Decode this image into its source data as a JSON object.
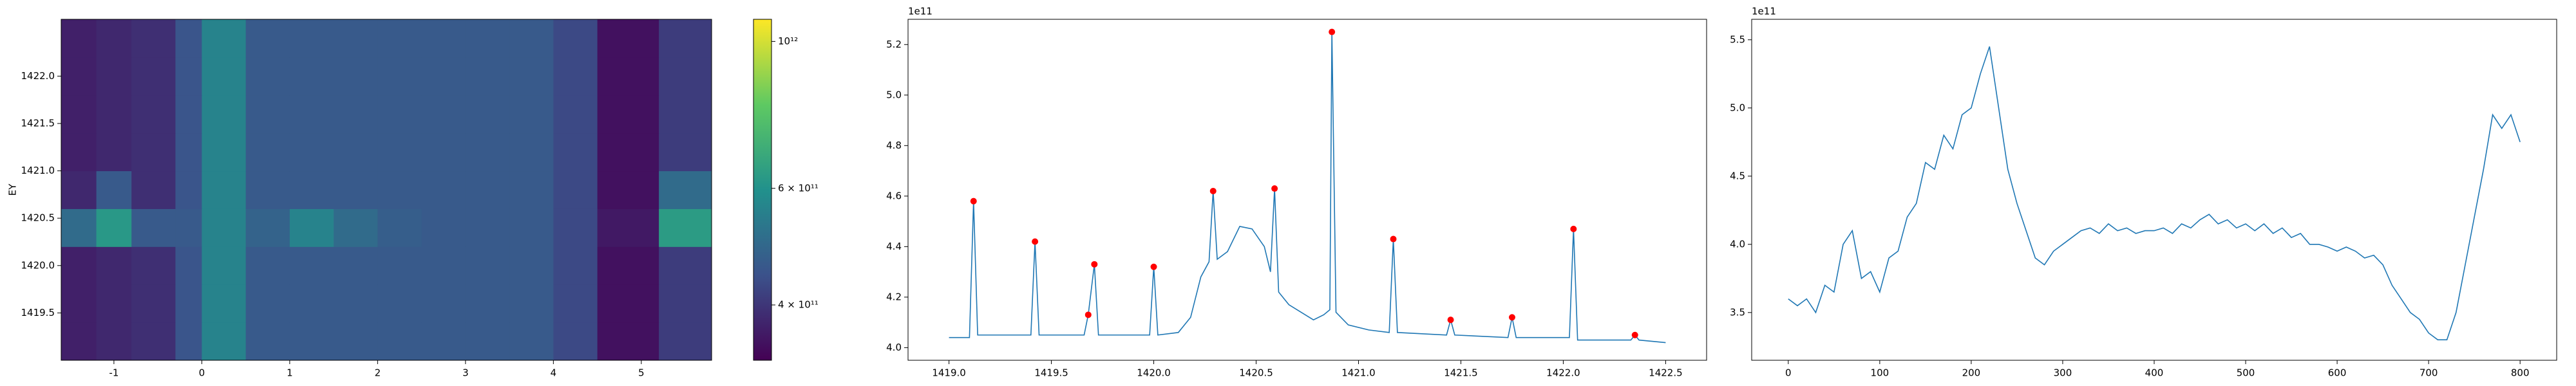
{
  "chart_data": [
    {
      "type": "heatmap",
      "ylabel": "EY",
      "x_edges": [
        -1.6,
        -1.2,
        -0.8,
        -0.3,
        0.0,
        0.5,
        1.0,
        1.5,
        2.0,
        2.5,
        3.0,
        3.5,
        4.0,
        4.5,
        5.2,
        5.8
      ],
      "y_edges": [
        1419.0,
        1419.4,
        1419.8,
        1420.2,
        1420.6,
        1421.0,
        1421.4,
        1421.8,
        1422.2,
        1422.6
      ],
      "z": [
        [
          370000000000.0,
          380000000000.0,
          390000000000.0,
          450000000000.0,
          560000000000.0,
          460000000000.0,
          460000000000.0,
          460000000000.0,
          460000000000.0,
          460000000000.0,
          460000000000.0,
          460000000000.0,
          430000000000.0,
          350000000000.0,
          410000000000.0
        ],
        [
          370000000000.0,
          380000000000.0,
          390000000000.0,
          450000000000.0,
          560000000000.0,
          460000000000.0,
          460000000000.0,
          460000000000.0,
          460000000000.0,
          460000000000.0,
          460000000000.0,
          460000000000.0,
          430000000000.0,
          350000000000.0,
          410000000000.0
        ],
        [
          370000000000.0,
          380000000000.0,
          390000000000.0,
          450000000000.0,
          560000000000.0,
          460000000000.0,
          460000000000.0,
          460000000000.0,
          460000000000.0,
          460000000000.0,
          460000000000.0,
          460000000000.0,
          430000000000.0,
          350000000000.0,
          410000000000.0
        ],
        [
          500000000000.0,
          620000000000.0,
          460000000000.0,
          460000000000.0,
          560000000000.0,
          480000000000.0,
          560000000000.0,
          500000000000.0,
          470000000000.0,
          460000000000.0,
          460000000000.0,
          460000000000.0,
          430000000000.0,
          360000000000.0,
          630000000000.0
        ],
        [
          380000000000.0,
          460000000000.0,
          390000000000.0,
          450000000000.0,
          560000000000.0,
          460000000000.0,
          460000000000.0,
          460000000000.0,
          460000000000.0,
          460000000000.0,
          460000000000.0,
          460000000000.0,
          430000000000.0,
          350000000000.0,
          500000000000.0
        ],
        [
          370000000000.0,
          380000000000.0,
          390000000000.0,
          450000000000.0,
          560000000000.0,
          460000000000.0,
          460000000000.0,
          460000000000.0,
          460000000000.0,
          460000000000.0,
          460000000000.0,
          460000000000.0,
          430000000000.0,
          350000000000.0,
          410000000000.0
        ],
        [
          370000000000.0,
          380000000000.0,
          390000000000.0,
          450000000000.0,
          560000000000.0,
          460000000000.0,
          460000000000.0,
          460000000000.0,
          460000000000.0,
          460000000000.0,
          460000000000.0,
          460000000000.0,
          430000000000.0,
          350000000000.0,
          410000000000.0
        ],
        [
          370000000000.0,
          380000000000.0,
          390000000000.0,
          450000000000.0,
          560000000000.0,
          460000000000.0,
          460000000000.0,
          460000000000.0,
          460000000000.0,
          460000000000.0,
          460000000000.0,
          460000000000.0,
          430000000000.0,
          350000000000.0,
          410000000000.0
        ],
        [
          370000000000.0,
          380000000000.0,
          390000000000.0,
          450000000000.0,
          560000000000.0,
          460000000000.0,
          460000000000.0,
          460000000000.0,
          460000000000.0,
          460000000000.0,
          460000000000.0,
          460000000000.0,
          430000000000.0,
          350000000000.0,
          410000000000.0
        ]
      ],
      "xlim": [
        -1.6,
        5.8
      ],
      "ylim": [
        1419.0,
        1422.6
      ],
      "xticks": [
        -1,
        0,
        1,
        2,
        3,
        4,
        5
      ],
      "yticks": [
        1419.5,
        {
          "value": 1420,
          "label": "1420.0"
        },
        1420.5,
        {
          "value": 1421,
          "label": "1421.0"
        },
        1421.5,
        {
          "value": 1422,
          "label": "1422.0"
        }
      ],
      "colorbar": {
        "colormap": "viridis",
        "log": true,
        "lim": [
          330000000000.0,
          1080000000000.0
        ],
        "ticks": [
          {
            "value": 400000000000.0,
            "label": "4 × 10¹¹"
          },
          {
            "value": 600000000000.0,
            "label": "6 × 10¹¹"
          },
          {
            "value": 1000000000000.0,
            "label": "10¹²"
          }
        ]
      }
    },
    {
      "type": "line",
      "y_offset_label": "1e11",
      "xlim": [
        1418.8,
        1422.7
      ],
      "ylim": [
        3.95,
        5.3
      ],
      "xticks": [
        {
          "value": 1419,
          "label": "1419.0"
        },
        1419.5,
        {
          "value": 1420,
          "label": "1420.0"
        },
        1420.5,
        {
          "value": 1421,
          "label": "1421.0"
        },
        1421.5,
        {
          "value": 1422,
          "label": "1422.0"
        },
        1422.5
      ],
      "yticks": [
        {
          "value": 4,
          "label": "4.0"
        },
        4.2,
        4.4,
        4.6,
        4.8,
        {
          "value": 5,
          "label": "5.0"
        },
        5.2
      ],
      "series": [
        {
          "color": "#1f77b4",
          "line": true,
          "marker": false,
          "x": [
            1419.0,
            1419.1,
            1419.12,
            1419.14,
            1419.4,
            1419.42,
            1419.44,
            1419.66,
            1419.68,
            1419.71,
            1419.73,
            1419.98,
            1420.0,
            1420.02,
            1420.12,
            1420.18,
            1420.23,
            1420.27,
            1420.29,
            1420.31,
            1420.36,
            1420.42,
            1420.48,
            1420.54,
            1420.57,
            1420.59,
            1420.61,
            1420.66,
            1420.72,
            1420.78,
            1420.83,
            1420.86,
            1420.87,
            1420.89,
            1420.95,
            1421.05,
            1421.15,
            1421.17,
            1421.19,
            1421.43,
            1421.45,
            1421.47,
            1421.73,
            1421.75,
            1421.77,
            1422.03,
            1422.05,
            1422.07,
            1422.33,
            1422.35,
            1422.37,
            1422.5
          ],
          "values": [
            4.04,
            4.04,
            4.58,
            4.05,
            4.05,
            4.42,
            4.05,
            4.05,
            4.13,
            4.33,
            4.05,
            4.05,
            4.32,
            4.05,
            4.06,
            4.12,
            4.28,
            4.34,
            4.62,
            4.35,
            4.38,
            4.48,
            4.47,
            4.4,
            4.3,
            4.63,
            4.22,
            4.17,
            4.14,
            4.11,
            4.13,
            4.15,
            5.25,
            4.14,
            4.09,
            4.07,
            4.06,
            4.43,
            4.06,
            4.05,
            4.11,
            4.05,
            4.04,
            4.12,
            4.04,
            4.04,
            4.47,
            4.03,
            4.03,
            4.05,
            4.03,
            4.02
          ]
        },
        {
          "color": "#ff0000",
          "line": false,
          "marker": true,
          "x": [
            1419.12,
            1419.42,
            1419.68,
            1419.71,
            1420.0,
            1420.29,
            1420.59,
            1420.87,
            1421.17,
            1421.45,
            1421.75,
            1422.05,
            1422.35
          ],
          "values": [
            4.58,
            4.42,
            4.13,
            4.33,
            4.32,
            4.62,
            4.63,
            5.25,
            4.43,
            4.11,
            4.12,
            4.47,
            4.05
          ]
        }
      ]
    },
    {
      "type": "line",
      "y_offset_label": "1e11",
      "xlim": [
        -40,
        840
      ],
      "ylim": [
        3.15,
        5.65
      ],
      "xticks": [
        0,
        100,
        200,
        300,
        400,
        500,
        600,
        700,
        800
      ],
      "yticks": [
        3.5,
        {
          "value": 4,
          "label": "4.0"
        },
        4.5,
        {
          "value": 5,
          "label": "5.0"
        },
        5.5
      ],
      "series": [
        {
          "color": "#1f77b4",
          "line": true,
          "marker": false,
          "x": [
            0,
            10,
            20,
            30,
            40,
            50,
            60,
            70,
            80,
            90,
            100,
            110,
            120,
            130,
            140,
            150,
            160,
            170,
            180,
            190,
            200,
            210,
            220,
            230,
            240,
            250,
            260,
            270,
            280,
            290,
            300,
            310,
            320,
            330,
            340,
            350,
            360,
            370,
            380,
            390,
            400,
            410,
            420,
            430,
            440,
            450,
            460,
            470,
            480,
            490,
            500,
            510,
            520,
            530,
            540,
            550,
            560,
            570,
            580,
            590,
            600,
            610,
            620,
            630,
            640,
            650,
            660,
            670,
            680,
            690,
            700,
            710,
            720,
            730,
            740,
            750,
            760,
            770,
            780,
            790,
            800
          ],
          "values": [
            3.6,
            3.55,
            3.6,
            3.5,
            3.7,
            3.65,
            4.0,
            4.1,
            3.75,
            3.8,
            3.65,
            3.9,
            3.95,
            4.2,
            4.3,
            4.6,
            4.55,
            4.8,
            4.7,
            4.95,
            5.0,
            5.25,
            5.45,
            5.0,
            4.55,
            4.3,
            4.1,
            3.9,
            3.85,
            3.95,
            4.0,
            4.05,
            4.1,
            4.12,
            4.08,
            4.15,
            4.1,
            4.12,
            4.08,
            4.1,
            4.1,
            4.12,
            4.08,
            4.15,
            4.12,
            4.18,
            4.22,
            4.15,
            4.18,
            4.12,
            4.15,
            4.1,
            4.15,
            4.08,
            4.12,
            4.05,
            4.08,
            4.0,
            4.0,
            3.98,
            3.95,
            3.98,
            3.95,
            3.9,
            3.92,
            3.85,
            3.7,
            3.6,
            3.5,
            3.45,
            3.35,
            3.3,
            3.3,
            3.5,
            3.85,
            4.2,
            4.55,
            4.95,
            4.85,
            4.95,
            4.75
          ]
        }
      ]
    }
  ]
}
